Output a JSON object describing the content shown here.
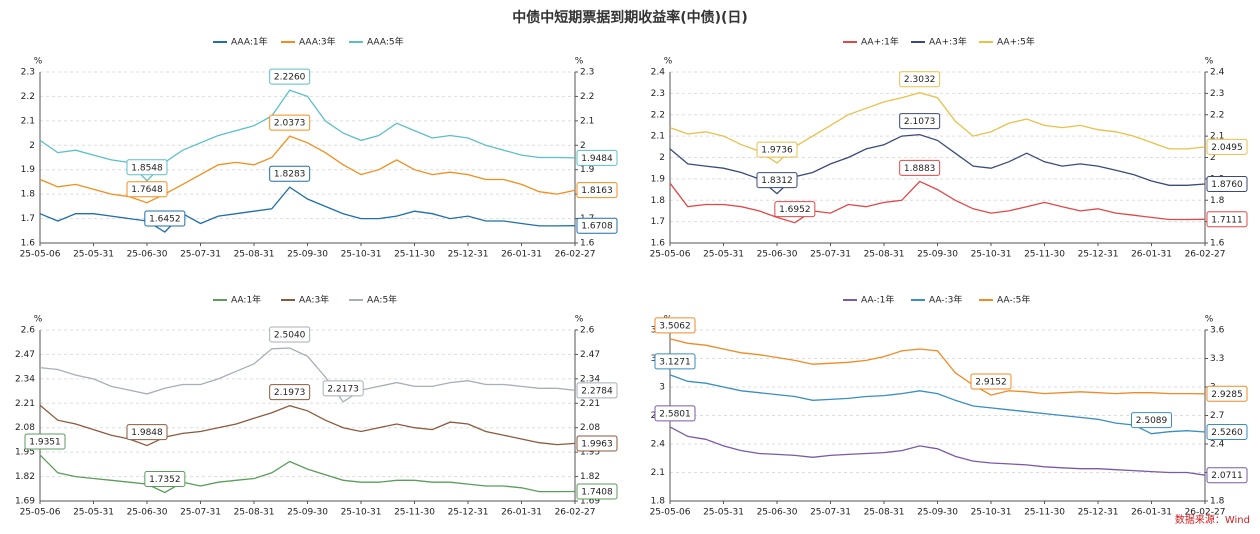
{
  "title": "中债中短期票据到期收益率(中债)(日)",
  "source": "数据来源：Wind",
  "chart_data": [
    {
      "type": "line",
      "y_label": "%",
      "y2_label": "%",
      "x": [
        "25-05-06",
        "25-05-14",
        "25-05-22",
        "25-05-31",
        "25-06-10",
        "25-06-20",
        "25-06-30",
        "25-07-10",
        "25-07-20",
        "25-07-31",
        "25-08-10",
        "25-08-20",
        "25-08-31",
        "25-09-10",
        "25-09-20",
        "25-09-30",
        "25-10-10",
        "25-10-20",
        "25-10-31",
        "25-11-10",
        "25-11-20",
        "25-11-30",
        "25-12-10",
        "25-12-20",
        "25-12-31",
        "26-01-10",
        "26-01-20",
        "26-01-31",
        "26-02-10",
        "26-02-20",
        "26-02-27"
      ],
      "xticks": [
        "25-05-06",
        "25-05-31",
        "25-06-30",
        "25-07-31",
        "25-08-31",
        "25-09-30",
        "25-10-31",
        "25-11-30",
        "25-12-31",
        "26-01-31",
        "26-02-27"
      ],
      "ylim": [
        1.6,
        2.3
      ],
      "yticks": [
        1.6,
        1.7,
        1.8,
        1.9,
        2,
        2.1,
        2.2,
        2.3
      ],
      "y2lim": [
        1.6,
        2.3
      ],
      "y2ticks": [
        1.6,
        1.7,
        1.8,
        1.9,
        2,
        2.1,
        2.2,
        2.3
      ],
      "grid": true,
      "series": [
        {
          "name": "AAA:1年",
          "color": "#1f6fa8",
          "values": [
            1.72,
            1.69,
            1.72,
            1.72,
            1.71,
            1.7,
            1.69,
            1.6452,
            1.72,
            1.68,
            1.71,
            1.72,
            1.73,
            1.74,
            1.8283,
            1.78,
            1.75,
            1.72,
            1.7,
            1.7,
            1.71,
            1.73,
            1.72,
            1.7,
            1.71,
            1.69,
            1.69,
            1.68,
            1.67,
            1.67,
            1.6708
          ]
        },
        {
          "name": "AAA:3年",
          "color": "#f28e1c",
          "values": [
            1.86,
            1.83,
            1.84,
            1.82,
            1.8,
            1.79,
            1.7648,
            1.8,
            1.84,
            1.88,
            1.92,
            1.93,
            1.92,
            1.95,
            2.0373,
            2.01,
            1.97,
            1.92,
            1.88,
            1.9,
            1.94,
            1.9,
            1.88,
            1.89,
            1.88,
            1.86,
            1.86,
            1.84,
            1.81,
            1.8,
            1.8163
          ]
        },
        {
          "name": "AAA:5年",
          "color": "#5bbfc8",
          "values": [
            2.02,
            1.97,
            1.98,
            1.96,
            1.94,
            1.93,
            1.8548,
            1.93,
            1.98,
            2.01,
            2.04,
            2.06,
            2.08,
            2.12,
            2.226,
            2.2,
            2.1,
            2.05,
            2.02,
            2.04,
            2.09,
            2.06,
            2.03,
            2.04,
            2.03,
            2.0,
            1.98,
            1.96,
            1.95,
            1.95,
            1.9484
          ]
        }
      ],
      "annotations": [
        {
          "x": "25-09-20",
          "value": 2.226,
          "label": "2.2260",
          "color": "#5bbfc8"
        },
        {
          "x": "25-06-30",
          "value": 1.8548,
          "label": "1.8548",
          "color": "#5bbfc8"
        },
        {
          "x": "26-02-27",
          "value": 1.9484,
          "label": "1.9484",
          "color": "#5bbfc8"
        },
        {
          "x": "25-09-20",
          "value": 2.0373,
          "label": "2.0373",
          "color": "#f28e1c"
        },
        {
          "x": "25-06-30",
          "value": 1.7648,
          "label": "1.7648",
          "color": "#f28e1c"
        },
        {
          "x": "26-02-27",
          "value": 1.8163,
          "label": "1.8163",
          "color": "#f28e1c"
        },
        {
          "x": "25-09-20",
          "value": 1.8283,
          "label": "1.8283",
          "color": "#1f6fa8"
        },
        {
          "x": "25-07-10",
          "value": 1.6452,
          "label": "1.6452",
          "color": "#1f6fa8"
        },
        {
          "x": "26-02-27",
          "value": 1.6708,
          "label": "1.6708",
          "color": "#1f6fa8"
        }
      ]
    },
    {
      "type": "line",
      "y_label": "%",
      "y2_label": "%",
      "x": [
        "25-05-06",
        "25-05-14",
        "25-05-22",
        "25-05-31",
        "25-06-10",
        "25-06-20",
        "25-06-30",
        "25-07-10",
        "25-07-20",
        "25-07-31",
        "25-08-10",
        "25-08-20",
        "25-08-31",
        "25-09-10",
        "25-09-20",
        "25-09-30",
        "25-10-10",
        "25-10-20",
        "25-10-31",
        "25-11-10",
        "25-11-20",
        "25-11-30",
        "25-12-10",
        "25-12-20",
        "25-12-31",
        "26-01-10",
        "26-01-20",
        "26-01-31",
        "26-02-10",
        "26-02-20",
        "26-02-27"
      ],
      "xticks": [
        "25-05-06",
        "25-05-31",
        "25-06-30",
        "25-07-31",
        "25-08-31",
        "25-09-30",
        "25-10-31",
        "25-11-30",
        "25-12-31",
        "26-01-31",
        "26-02-27"
      ],
      "ylim": [
        1.6,
        2.4
      ],
      "yticks": [
        1.6,
        1.7,
        1.8,
        1.9,
        2,
        2.1,
        2.2,
        2.3,
        2.4
      ],
      "y2lim": [
        1.6,
        2.4
      ],
      "y2ticks": [
        1.6,
        1.7,
        1.8,
        1.9,
        2,
        2.1,
        2.2,
        2.3,
        2.4
      ],
      "grid": true,
      "series": [
        {
          "name": "AA+:1年",
          "color": "#e04848",
          "values": [
            1.88,
            1.77,
            1.78,
            1.78,
            1.77,
            1.75,
            1.72,
            1.6952,
            1.75,
            1.74,
            1.78,
            1.77,
            1.79,
            1.8,
            1.8883,
            1.85,
            1.8,
            1.76,
            1.74,
            1.75,
            1.77,
            1.79,
            1.77,
            1.75,
            1.76,
            1.74,
            1.73,
            1.72,
            1.71,
            1.71,
            1.7111
          ]
        },
        {
          "name": "AA+:3年",
          "color": "#3b4a7a",
          "values": [
            2.04,
            1.97,
            1.96,
            1.95,
            1.93,
            1.9,
            1.8312,
            1.91,
            1.93,
            1.97,
            2.0,
            2.04,
            2.06,
            2.1,
            2.1073,
            2.08,
            2.02,
            1.96,
            1.95,
            1.98,
            2.02,
            1.98,
            1.96,
            1.97,
            1.96,
            1.94,
            1.92,
            1.89,
            1.87,
            1.87,
            1.876
          ]
        },
        {
          "name": "AA+:5年",
          "color": "#e8c04a",
          "values": [
            2.14,
            2.11,
            2.12,
            2.1,
            2.06,
            2.03,
            1.9736,
            2.05,
            2.1,
            2.15,
            2.2,
            2.23,
            2.26,
            2.28,
            2.3032,
            2.28,
            2.17,
            2.1,
            2.12,
            2.16,
            2.18,
            2.15,
            2.14,
            2.15,
            2.13,
            2.12,
            2.1,
            2.07,
            2.04,
            2.04,
            2.0495
          ]
        }
      ],
      "annotations": [
        {
          "x": "25-09-20",
          "value": 2.3032,
          "label": "2.3032",
          "color": "#e8c04a"
        },
        {
          "x": "25-06-30",
          "value": 1.9736,
          "label": "1.9736",
          "color": "#e8c04a"
        },
        {
          "x": "26-02-27",
          "value": 2.0495,
          "label": "2.0495",
          "color": "#e8c04a"
        },
        {
          "x": "25-09-20",
          "value": 2.1073,
          "label": "2.1073",
          "color": "#3b4a7a"
        },
        {
          "x": "25-06-30",
          "value": 1.8312,
          "label": "1.8312",
          "color": "#3b4a7a"
        },
        {
          "x": "26-02-27",
          "value": 1.876,
          "label": "1.8760",
          "color": "#3b4a7a"
        },
        {
          "x": "25-09-20",
          "value": 1.8883,
          "label": "1.8883",
          "color": "#e04848"
        },
        {
          "x": "25-07-10",
          "value": 1.6952,
          "label": "1.6952",
          "color": "#e04848"
        },
        {
          "x": "26-02-27",
          "value": 1.7111,
          "label": "1.7111",
          "color": "#e04848"
        }
      ]
    },
    {
      "type": "line",
      "y_label": "%",
      "y2_label": "%",
      "x": [
        "25-05-06",
        "25-05-14",
        "25-05-22",
        "25-05-31",
        "25-06-10",
        "25-06-20",
        "25-06-30",
        "25-07-10",
        "25-07-20",
        "25-07-31",
        "25-08-10",
        "25-08-20",
        "25-08-31",
        "25-09-10",
        "25-09-20",
        "25-09-30",
        "25-10-10",
        "25-10-20",
        "25-10-31",
        "25-11-10",
        "25-11-20",
        "25-11-30",
        "25-12-10",
        "25-12-20",
        "25-12-31",
        "26-01-10",
        "26-01-20",
        "26-01-31",
        "26-02-10",
        "26-02-20",
        "26-02-27"
      ],
      "xticks": [
        "25-05-06",
        "25-05-31",
        "25-06-30",
        "25-07-31",
        "25-08-31",
        "25-09-30",
        "25-10-31",
        "25-11-30",
        "25-12-31",
        "26-01-31",
        "26-02-27"
      ],
      "ylim": [
        1.69,
        2.6
      ],
      "yticks": [
        1.69,
        1.82,
        1.95,
        2.08,
        2.21,
        2.34,
        2.47,
        2.6
      ],
      "y2lim": [
        1.69,
        2.6
      ],
      "y2ticks": [
        1.69,
        1.82,
        1.95,
        2.08,
        2.21,
        2.34,
        2.47,
        2.6
      ],
      "grid": true,
      "series": [
        {
          "name": "AA:1年",
          "color": "#5a9e5a",
          "values": [
            1.9351,
            1.84,
            1.82,
            1.81,
            1.8,
            1.79,
            1.78,
            1.7352,
            1.79,
            1.77,
            1.79,
            1.8,
            1.81,
            1.84,
            1.9,
            1.86,
            1.83,
            1.8,
            1.79,
            1.79,
            1.8,
            1.8,
            1.79,
            1.79,
            1.78,
            1.77,
            1.77,
            1.76,
            1.74,
            1.74,
            1.7408
          ]
        },
        {
          "name": "AA:3年",
          "color": "#8b5a3c",
          "values": [
            2.2,
            2.12,
            2.1,
            2.07,
            2.04,
            2.02,
            1.9848,
            2.03,
            2.05,
            2.06,
            2.08,
            2.1,
            2.13,
            2.16,
            2.1973,
            2.17,
            2.12,
            2.08,
            2.06,
            2.08,
            2.1,
            2.08,
            2.07,
            2.11,
            2.1,
            2.06,
            2.04,
            2.02,
            2.0,
            1.99,
            1.9963
          ]
        },
        {
          "name": "AA:5年",
          "color": "#a8aeb8",
          "values": [
            2.4,
            2.39,
            2.36,
            2.34,
            2.3,
            2.28,
            2.26,
            2.29,
            2.31,
            2.31,
            2.34,
            2.38,
            2.42,
            2.5,
            2.504,
            2.46,
            2.35,
            2.2173,
            2.28,
            2.3,
            2.32,
            2.3,
            2.3,
            2.32,
            2.33,
            2.31,
            2.31,
            2.3,
            2.29,
            2.29,
            2.2784
          ]
        }
      ],
      "annotations": [
        {
          "x": "25-09-20",
          "value": 2.504,
          "label": "2.5040",
          "color": "#a8aeb8"
        },
        {
          "x": "25-10-20",
          "value": 2.2173,
          "label": "2.2173",
          "color": "#a8aeb8"
        },
        {
          "x": "26-02-27",
          "value": 2.2784,
          "label": "2.2784",
          "color": "#a8aeb8"
        },
        {
          "x": "25-09-20",
          "value": 2.1973,
          "label": "2.1973",
          "color": "#8b5a3c"
        },
        {
          "x": "25-06-30",
          "value": 1.9848,
          "label": "1.9848",
          "color": "#8b5a3c"
        },
        {
          "x": "26-02-27",
          "value": 1.9963,
          "label": "1.9963",
          "color": "#8b5a3c"
        },
        {
          "x": "25-05-06",
          "value": 1.9351,
          "label": "1.9351",
          "color": "#5a9e5a"
        },
        {
          "x": "25-07-10",
          "value": 1.7352,
          "label": "1.7352",
          "color": "#5a9e5a"
        },
        {
          "x": "26-02-27",
          "value": 1.7408,
          "label": "1.7408",
          "color": "#5a9e5a"
        }
      ]
    },
    {
      "type": "line",
      "y_label": "%",
      "y2_label": "%",
      "x": [
        "25-05-06",
        "25-05-14",
        "25-05-22",
        "25-05-31",
        "25-06-10",
        "25-06-20",
        "25-06-30",
        "25-07-10",
        "25-07-20",
        "25-07-31",
        "25-08-10",
        "25-08-20",
        "25-08-31",
        "25-09-10",
        "25-09-20",
        "25-09-30",
        "25-10-10",
        "25-10-20",
        "25-10-31",
        "25-11-10",
        "25-11-20",
        "25-11-30",
        "25-12-10",
        "25-12-20",
        "25-12-31",
        "26-01-10",
        "26-01-20",
        "26-01-31",
        "26-02-10",
        "26-02-20",
        "26-02-27"
      ],
      "xticks": [
        "25-05-06",
        "25-05-31",
        "25-06-30",
        "25-07-31",
        "25-08-31",
        "25-09-30",
        "25-10-31",
        "25-11-30",
        "25-12-31",
        "26-01-31",
        "26-02-27"
      ],
      "ylim": [
        1.8,
        3.6
      ],
      "yticks": [
        1.8,
        2.1,
        2.4,
        2.7,
        3,
        3.3,
        3.6
      ],
      "y2lim": [
        1.8,
        3.6
      ],
      "y2ticks": [
        1.8,
        2.1,
        2.4,
        2.7,
        3,
        3.3,
        3.6
      ],
      "grid": true,
      "series": [
        {
          "name": "AA-:1年",
          "color": "#7a5aa6",
          "values": [
            2.5801,
            2.48,
            2.45,
            2.38,
            2.33,
            2.3,
            2.29,
            2.28,
            2.26,
            2.28,
            2.29,
            2.3,
            2.31,
            2.33,
            2.38,
            2.35,
            2.27,
            2.22,
            2.2,
            2.19,
            2.18,
            2.16,
            2.15,
            2.14,
            2.14,
            2.13,
            2.12,
            2.11,
            2.1,
            2.1,
            2.0711
          ]
        },
        {
          "name": "AA-:3年",
          "color": "#3a8ec0",
          "values": [
            3.1271,
            3.06,
            3.04,
            3.0,
            2.96,
            2.94,
            2.92,
            2.9,
            2.86,
            2.87,
            2.88,
            2.9,
            2.91,
            2.93,
            2.96,
            2.93,
            2.86,
            2.8,
            2.78,
            2.76,
            2.74,
            2.72,
            2.7,
            2.68,
            2.66,
            2.62,
            2.6,
            2.5089,
            2.53,
            2.54,
            2.526
          ]
        },
        {
          "name": "AA-:5年",
          "color": "#f08a24",
          "values": [
            3.5062,
            3.46,
            3.44,
            3.4,
            3.36,
            3.34,
            3.31,
            3.28,
            3.24,
            3.25,
            3.26,
            3.28,
            3.32,
            3.38,
            3.4,
            3.38,
            3.15,
            3.02,
            2.9152,
            2.96,
            2.95,
            2.93,
            2.94,
            2.95,
            2.94,
            2.93,
            2.94,
            2.94,
            2.93,
            2.93,
            2.9285
          ]
        }
      ],
      "annotations": [
        {
          "x": "25-05-06",
          "value": 3.5062,
          "label": "3.5062",
          "color": "#f08a24"
        },
        {
          "x": "25-10-31",
          "value": 2.9152,
          "label": "2.9152",
          "color": "#f08a24"
        },
        {
          "x": "26-02-27",
          "value": 2.9285,
          "label": "2.9285",
          "color": "#f08a24"
        },
        {
          "x": "25-05-06",
          "value": 3.1271,
          "label": "3.1271",
          "color": "#3a8ec0"
        },
        {
          "x": "26-01-31",
          "value": 2.5089,
          "label": "2.5089",
          "color": "#3a8ec0"
        },
        {
          "x": "26-02-27",
          "value": 2.526,
          "label": "2.5260",
          "color": "#3a8ec0"
        },
        {
          "x": "25-05-06",
          "value": 2.5801,
          "label": "2.5801",
          "color": "#7a5aa6"
        },
        {
          "x": "26-02-27",
          "value": 2.0711,
          "label": "2.0711",
          "color": "#7a5aa6"
        }
      ]
    }
  ]
}
